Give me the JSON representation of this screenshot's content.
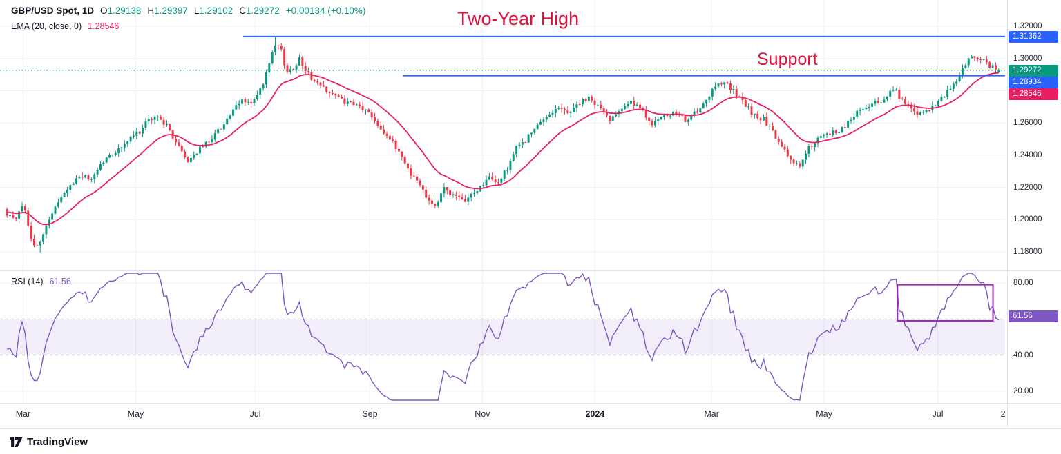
{
  "header": {
    "symbol": "GBP/USD Spot, 1D",
    "ohlc": [
      {
        "k": "O",
        "v": "1.29138"
      },
      {
        "k": "H",
        "v": "1.29397"
      },
      {
        "k": "L",
        "v": "1.29102"
      },
      {
        "k": "C",
        "v": "1.29272"
      }
    ],
    "change": "+0.00134 (+0.10%)",
    "ema_label": "EMA (20, close, 0)",
    "ema_value": "1.28546"
  },
  "rsi_header": {
    "label": "RSI (14)",
    "value": "61.56"
  },
  "annotations": {
    "two_year_high": "Two-Year High",
    "support": "Support"
  },
  "footer": {
    "brand": "TradingView"
  },
  "colors": {
    "up": "#089981",
    "down": "#F23645",
    "ema": "#E91E63",
    "rsi": "#7E57C2",
    "blue_line": "#2962FF",
    "annotation": "#DC143C",
    "grid": "#eef1f6",
    "band_fill": "rgba(126,87,194,0.10)",
    "band_line": "#a9aeb8",
    "highlight_box": "#9C27B0",
    "current_price": "#089981",
    "axis_text": "#2a2e39"
  },
  "axis_badges": [
    {
      "text": "1.31362",
      "price": 1.31362,
      "bg": "#2962FF"
    },
    {
      "text": "1.29272",
      "price": 1.29272,
      "bg": "#089981"
    },
    {
      "text": "1.28934",
      "price": 1.28934,
      "bg": "#2962FF"
    },
    {
      "text": "1.28546",
      "price": 1.28546,
      "bg": "#E91E63"
    }
  ],
  "rsi_badge": {
    "text": "61.56",
    "value": 61.56,
    "bg": "#7E57C2"
  },
  "chart_data": {
    "type": "candlestick",
    "symbol": "GBP/USD Spot",
    "timeframe": "1D",
    "current": {
      "open": 1.29138,
      "high": 1.29397,
      "low": 1.29102,
      "close": 1.29272,
      "change_abs": 0.00134,
      "change_pct": 0.1
    },
    "indicators": [
      {
        "name": "EMA",
        "params": "20, close, 0",
        "value": 1.28546
      },
      {
        "name": "RSI",
        "params": "14",
        "value": 61.56
      }
    ],
    "levels": [
      {
        "name": "two-year-high-line",
        "price": 1.31362,
        "x_start": 0.242,
        "style": "solid",
        "color": "#2962FF"
      },
      {
        "name": "support-line",
        "price": 1.28934,
        "x_start": 0.401,
        "style": "solid",
        "color": "#2962FF"
      },
      {
        "name": "last-price-line",
        "price": 1.29272,
        "x_start": 0.0,
        "style": "dotted",
        "color": "#089981"
      }
    ],
    "y_axis": {
      "min": 1.18,
      "max": 1.32,
      "step": 0.02,
      "grid": [
        1.18,
        1.2,
        1.22,
        1.24,
        1.26,
        1.28,
        1.3,
        1.32
      ],
      "labels": [
        {
          "text": "1.32000",
          "price": 1.32
        },
        {
          "text": "1.30000",
          "price": 1.3
        },
        {
          "text": "1.26000",
          "price": 1.26
        },
        {
          "text": "1.24000",
          "price": 1.24
        },
        {
          "text": "1.22000",
          "price": 1.22
        },
        {
          "text": "1.20000",
          "price": 1.2
        },
        {
          "text": "1.18000",
          "price": 1.18
        }
      ]
    },
    "x_axis": [
      {
        "label": "Mar",
        "x": 0.023
      },
      {
        "label": "May",
        "x": 0.135
      },
      {
        "label": "Jul",
        "x": 0.254
      },
      {
        "label": "Sep",
        "x": 0.368
      },
      {
        "label": "Nov",
        "x": 0.48
      },
      {
        "label": "2024",
        "x": 0.592,
        "bold": true
      },
      {
        "label": "Mar",
        "x": 0.708
      },
      {
        "label": "May",
        "x": 0.82
      },
      {
        "label": "Jul",
        "x": 0.933
      },
      {
        "label": "2",
        "x": 0.998,
        "grid": false
      }
    ],
    "price_anchors": [
      [
        0.0,
        1.205
      ],
      [
        0.01,
        1.199
      ],
      [
        0.018,
        1.21
      ],
      [
        0.028,
        1.182
      ],
      [
        0.036,
        1.186
      ],
      [
        0.045,
        1.203
      ],
      [
        0.055,
        1.212
      ],
      [
        0.065,
        1.22
      ],
      [
        0.075,
        1.228
      ],
      [
        0.085,
        1.224
      ],
      [
        0.095,
        1.234
      ],
      [
        0.105,
        1.24
      ],
      [
        0.115,
        1.244
      ],
      [
        0.125,
        1.25
      ],
      [
        0.135,
        1.255
      ],
      [
        0.145,
        1.262
      ],
      [
        0.155,
        1.264
      ],
      [
        0.165,
        1.255
      ],
      [
        0.175,
        1.244
      ],
      [
        0.183,
        1.236
      ],
      [
        0.192,
        1.242
      ],
      [
        0.203,
        1.248
      ],
      [
        0.215,
        1.256
      ],
      [
        0.227,
        1.266
      ],
      [
        0.238,
        1.274
      ],
      [
        0.248,
        1.272
      ],
      [
        0.258,
        1.282
      ],
      [
        0.268,
        1.302
      ],
      [
        0.272,
        1.309
      ],
      [
        0.277,
        1.305
      ],
      [
        0.283,
        1.291
      ],
      [
        0.29,
        1.295
      ],
      [
        0.296,
        1.3
      ],
      [
        0.303,
        1.291
      ],
      [
        0.312,
        1.285
      ],
      [
        0.322,
        1.281
      ],
      [
        0.333,
        1.276
      ],
      [
        0.344,
        1.272
      ],
      [
        0.356,
        1.27
      ],
      [
        0.366,
        1.266
      ],
      [
        0.376,
        1.258
      ],
      [
        0.386,
        1.25
      ],
      [
        0.396,
        1.242
      ],
      [
        0.406,
        1.23
      ],
      [
        0.416,
        1.222
      ],
      [
        0.426,
        1.212
      ],
      [
        0.433,
        1.208
      ],
      [
        0.441,
        1.22
      ],
      [
        0.45,
        1.215
      ],
      [
        0.459,
        1.211
      ],
      [
        0.468,
        1.215
      ],
      [
        0.477,
        1.22
      ],
      [
        0.486,
        1.226
      ],
      [
        0.494,
        1.222
      ],
      [
        0.503,
        1.23
      ],
      [
        0.512,
        1.243
      ],
      [
        0.522,
        1.249
      ],
      [
        0.532,
        1.256
      ],
      [
        0.543,
        1.263
      ],
      [
        0.554,
        1.27
      ],
      [
        0.565,
        1.266
      ],
      [
        0.576,
        1.272
      ],
      [
        0.587,
        1.275
      ],
      [
        0.597,
        1.27
      ],
      [
        0.607,
        1.262
      ],
      [
        0.617,
        1.269
      ],
      [
        0.628,
        1.273
      ],
      [
        0.639,
        1.268
      ],
      [
        0.65,
        1.26
      ],
      [
        0.661,
        1.263
      ],
      [
        0.672,
        1.266
      ],
      [
        0.683,
        1.262
      ],
      [
        0.694,
        1.266
      ],
      [
        0.705,
        1.273
      ],
      [
        0.714,
        1.284
      ],
      [
        0.722,
        1.286
      ],
      [
        0.731,
        1.28
      ],
      [
        0.741,
        1.273
      ],
      [
        0.752,
        1.265
      ],
      [
        0.763,
        1.262
      ],
      [
        0.772,
        1.253
      ],
      [
        0.781,
        1.244
      ],
      [
        0.79,
        1.237
      ],
      [
        0.799,
        1.233
      ],
      [
        0.808,
        1.245
      ],
      [
        0.818,
        1.25
      ],
      [
        0.828,
        1.253
      ],
      [
        0.838,
        1.255
      ],
      [
        0.848,
        1.261
      ],
      [
        0.858,
        1.268
      ],
      [
        0.868,
        1.271
      ],
      [
        0.878,
        1.273
      ],
      [
        0.888,
        1.278
      ],
      [
        0.895,
        1.28
      ],
      [
        0.903,
        1.272
      ],
      [
        0.912,
        1.268
      ],
      [
        0.921,
        1.265
      ],
      [
        0.93,
        1.268
      ],
      [
        0.939,
        1.273
      ],
      [
        0.948,
        1.28
      ],
      [
        0.957,
        1.287
      ],
      [
        0.965,
        1.297
      ],
      [
        0.972,
        1.301
      ],
      [
        0.98,
        1.299
      ],
      [
        0.988,
        1.296
      ],
      [
        1.0,
        1.2927
      ]
    ],
    "extremes": {
      "max_high": 1.31362,
      "min_low": 1.1796
    },
    "rsi": {
      "period": 14,
      "value": 61.56,
      "band": [
        40,
        60
      ],
      "range_labels": [
        {
          "text": "80.00",
          "value": 80
        },
        {
          "text": "40.00",
          "value": 40
        },
        {
          "text": "20.00",
          "value": 20
        }
      ],
      "grid": [
        80,
        20
      ],
      "highlight_box": {
        "x1": 0.893,
        "x2": 0.988,
        "v1": 59,
        "v2": 79
      }
    },
    "candles_count": 330,
    "seed": 42
  }
}
